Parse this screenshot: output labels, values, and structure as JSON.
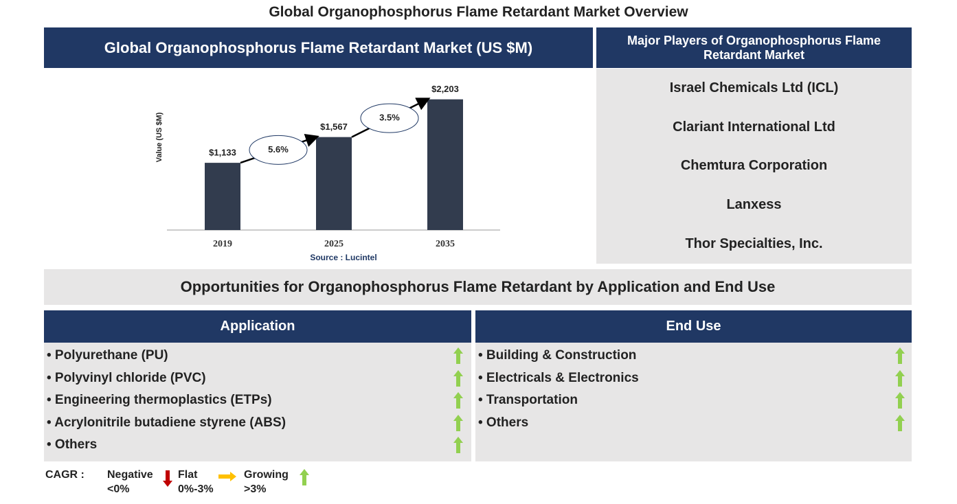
{
  "title": "Global Organophosphorus Flame Retardant Market Overview",
  "chart_data": {
    "type": "bar",
    "title": "Global Organophosphorus Flame Retardant Market (US $M)",
    "y_label": "Value (US $M)",
    "categories": [
      "2019",
      "2025",
      "2035"
    ],
    "values": [
      1133,
      1567,
      2203
    ],
    "value_labels": [
      "$1,133",
      "$1,567",
      "$2,203"
    ],
    "annotations": [
      "5.6%",
      "3.5%"
    ],
    "source": "Source : Lucintel",
    "color": "#323c4e",
    "ylim": [
      0,
      2500
    ]
  },
  "players": {
    "title": "Major Players of Organophosphorus Flame Retardant Market",
    "items": [
      "Israel Chemicals Ltd (ICL)",
      "Clariant International Ltd",
      "Chemtura Corporation",
      "Lanxess",
      "Thor Specialties, Inc."
    ]
  },
  "opportunities": {
    "title": "Opportunities for Organophosphorus Flame Retardant by Application and End Use",
    "application": {
      "title": "Application",
      "items": [
        "• Polyurethane (PU)",
        "• Polyvinyl chloride (PVC)",
        "• Engineering thermoplastics (ETPs)",
        "• Acrylonitrile butadiene styrene (ABS)",
        "• Others"
      ]
    },
    "end_use": {
      "title": "End Use",
      "items": [
        "• Building & Construction",
        "• Electricals & Electronics",
        "• Transportation",
        "• Others"
      ]
    }
  },
  "legend": {
    "label": "CAGR :",
    "items": [
      {
        "label": "Negative",
        "range": "<0%"
      },
      {
        "label": "Flat",
        "range": "0%-3%"
      },
      {
        "label": "Growing",
        "range": ">3%"
      }
    ]
  }
}
